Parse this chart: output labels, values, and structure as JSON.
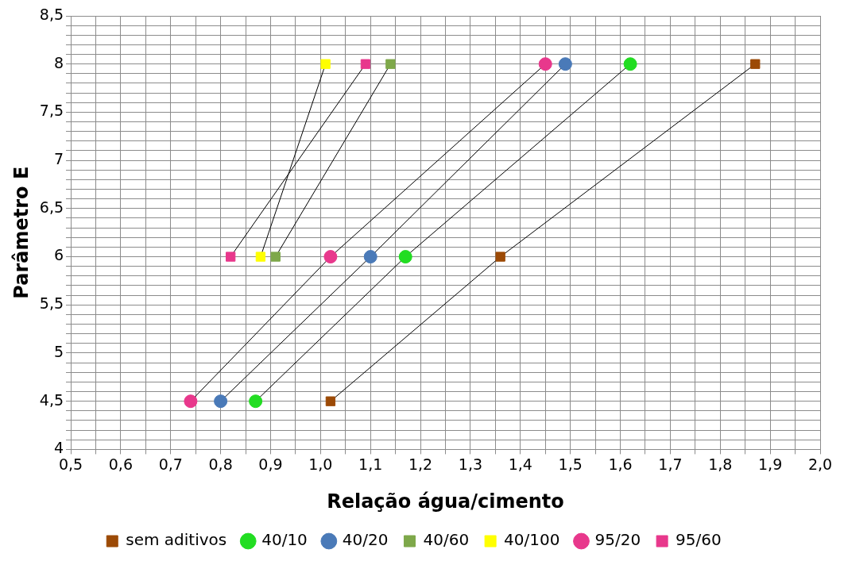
{
  "chart_data": {
    "type": "line",
    "xlabel": "Relação água/cimento",
    "ylabel": "Parâmetro E",
    "legend": "bottom",
    "grid": true,
    "line_style": "solid",
    "xlim": [
      0.5,
      2.0
    ],
    "ylim": [
      4,
      8.5
    ],
    "xticks": [
      {
        "value": 0.5,
        "label": "0,5"
      },
      {
        "value": 0.55,
        "label": null
      },
      {
        "value": 0.6,
        "label": "0,6"
      },
      {
        "value": 0.65,
        "label": null
      },
      {
        "value": 0.7,
        "label": "0,7"
      },
      {
        "value": 0.75,
        "label": null
      },
      {
        "value": 0.8,
        "label": "0,8"
      },
      {
        "value": 0.85,
        "label": null
      },
      {
        "value": 0.9,
        "label": "0,9"
      },
      {
        "value": 0.95,
        "label": null
      },
      {
        "value": 1.0,
        "label": "1,0"
      },
      {
        "value": 1.05,
        "label": null
      },
      {
        "value": 1.1,
        "label": "1,1"
      },
      {
        "value": 1.15,
        "label": null
      },
      {
        "value": 1.2,
        "label": "1,2"
      },
      {
        "value": 1.25,
        "label": null
      },
      {
        "value": 1.3,
        "label": "1,3"
      },
      {
        "value": 1.35,
        "label": null
      },
      {
        "value": 1.4,
        "label": "1,4"
      },
      {
        "value": 1.45,
        "label": null
      },
      {
        "value": 1.5,
        "label": "1,5"
      },
      {
        "value": 1.55,
        "label": null
      },
      {
        "value": 1.6,
        "label": "1,6"
      },
      {
        "value": 1.65,
        "label": null
      },
      {
        "value": 1.7,
        "label": "1,7"
      },
      {
        "value": 1.75,
        "label": null
      },
      {
        "value": 1.8,
        "label": "1,8"
      },
      {
        "value": 1.85,
        "label": null
      },
      {
        "value": 1.9,
        "label": "1,9"
      },
      {
        "value": 1.95,
        "label": null
      },
      {
        "value": 2.0,
        "label": "2,0"
      }
    ],
    "yticks": [
      4,
      {
        "value": 4.1,
        "label": null
      },
      {
        "value": 4.2,
        "label": null
      },
      {
        "value": 4.3,
        "label": null
      },
      {
        "value": 4.4,
        "label": null
      },
      {
        "value": 4.5,
        "label": "4,5"
      },
      {
        "value": 4.6,
        "label": null
      },
      {
        "value": 4.7,
        "label": null
      },
      {
        "value": 4.8,
        "label": null
      },
      {
        "value": 4.9,
        "label": null
      },
      5,
      {
        "value": 5.1,
        "label": null
      },
      {
        "value": 5.2,
        "label": null
      },
      {
        "value": 5.3,
        "label": null
      },
      {
        "value": 5.4,
        "label": null
      },
      {
        "value": 5.5,
        "label": "5,5"
      },
      {
        "value": 5.6,
        "label": null
      },
      {
        "value": 5.7,
        "label": null
      },
      {
        "value": 5.8,
        "label": null
      },
      {
        "value": 5.9,
        "label": null
      },
      6,
      {
        "value": 6.1,
        "label": null
      },
      {
        "value": 6.2,
        "label": null
      },
      {
        "value": 6.3,
        "label": null
      },
      {
        "value": 6.4,
        "label": null
      },
      {
        "value": 6.5,
        "label": "6,5"
      },
      {
        "value": 6.6,
        "label": null
      },
      {
        "value": 6.7,
        "label": null
      },
      {
        "value": 6.8,
        "label": null
      },
      {
        "value": 6.9,
        "label": null
      },
      7,
      {
        "value": 7.1,
        "label": null
      },
      {
        "value": 7.2,
        "label": null
      },
      {
        "value": 7.3,
        "label": null
      },
      {
        "value": 7.4,
        "label": null
      },
      {
        "value": 7.5,
        "label": "7,5"
      },
      {
        "value": 7.6,
        "label": null
      },
      {
        "value": 7.7,
        "label": null
      },
      {
        "value": 7.8,
        "label": null
      },
      {
        "value": 7.9,
        "label": null
      },
      8,
      {
        "value": 8.1,
        "label": null
      },
      {
        "value": 8.2,
        "label": null
      },
      {
        "value": 8.3,
        "label": null
      },
      {
        "value": 8.4,
        "label": null
      },
      {
        "value": 8.5,
        "label": "8,5"
      }
    ],
    "series": [
      {
        "name": "sem aditivos",
        "color": "#9c4a06",
        "marker": "square",
        "x": [
          1.02,
          1.36,
          1.87
        ],
        "values": [
          4.5,
          6,
          8
        ]
      },
      {
        "name": "40/10",
        "color": "#22dd22",
        "marker": "circle",
        "x": [
          0.87,
          1.17,
          1.62
        ],
        "values": [
          4.5,
          6,
          8
        ]
      },
      {
        "name": "40/20",
        "color": "#4a7ab8",
        "marker": "circle",
        "x": [
          0.8,
          1.1,
          1.49
        ],
        "values": [
          4.5,
          6,
          8
        ]
      },
      {
        "name": "40/60",
        "color": "#7ea84a",
        "marker": "square",
        "x": [
          0.91,
          1.14
        ],
        "values": [
          6,
          8
        ]
      },
      {
        "name": "40/100",
        "color": "#ffff00",
        "marker": "square",
        "x": [
          0.88,
          1.01
        ],
        "values": [
          6,
          8
        ]
      },
      {
        "name": "95/20",
        "color": "#e8388c",
        "marker": "circle",
        "x": [
          0.74,
          1.02,
          1.45
        ],
        "values": [
          4.5,
          6,
          8
        ]
      },
      {
        "name": "95/60",
        "color": "#e8388c",
        "marker": "square",
        "x": [
          0.82,
          1.09
        ],
        "values": [
          6,
          8
        ]
      }
    ]
  }
}
